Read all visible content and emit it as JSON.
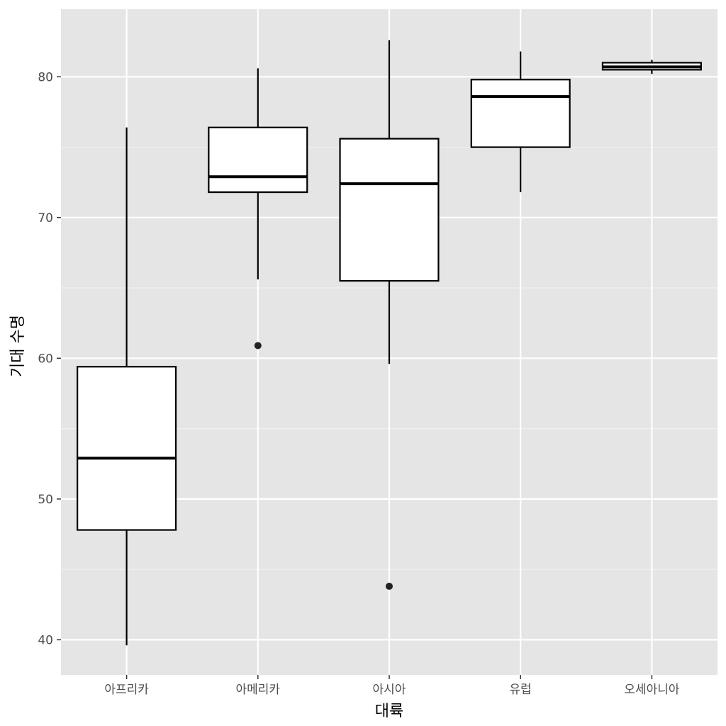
{
  "chart_data": {
    "type": "box",
    "title": "",
    "xlabel": "대륙",
    "ylabel": "기대 수명",
    "categories": [
      "아프리카",
      "아메리카",
      "아시아",
      "유럽",
      "오세아니아"
    ],
    "ylim": [
      37.5,
      84.8
    ],
    "yticks": [
      40,
      50,
      60,
      70,
      80
    ],
    "grid": true,
    "legend": "none",
    "boxes": [
      {
        "category": "아프리카",
        "whisker_low": 39.6,
        "q1": 47.8,
        "median": 52.9,
        "q3": 59.4,
        "whisker_high": 76.4,
        "outliers": []
      },
      {
        "category": "아메리카",
        "whisker_low": 65.6,
        "q1": 71.8,
        "median": 72.9,
        "q3": 76.4,
        "whisker_high": 80.6,
        "outliers": [
          60.9
        ]
      },
      {
        "category": "아시아",
        "whisker_low": 59.6,
        "q1": 65.5,
        "median": 72.4,
        "q3": 75.6,
        "whisker_high": 82.6,
        "outliers": [
          43.8
        ]
      },
      {
        "category": "유럽",
        "whisker_low": 71.8,
        "q1": 75.0,
        "median": 78.6,
        "q3": 79.8,
        "whisker_high": 81.8,
        "outliers": []
      },
      {
        "category": "오세아니아",
        "whisker_low": 80.2,
        "q1": 80.5,
        "median": 80.7,
        "q3": 81.0,
        "whisker_high": 81.2,
        "outliers": []
      }
    ]
  }
}
